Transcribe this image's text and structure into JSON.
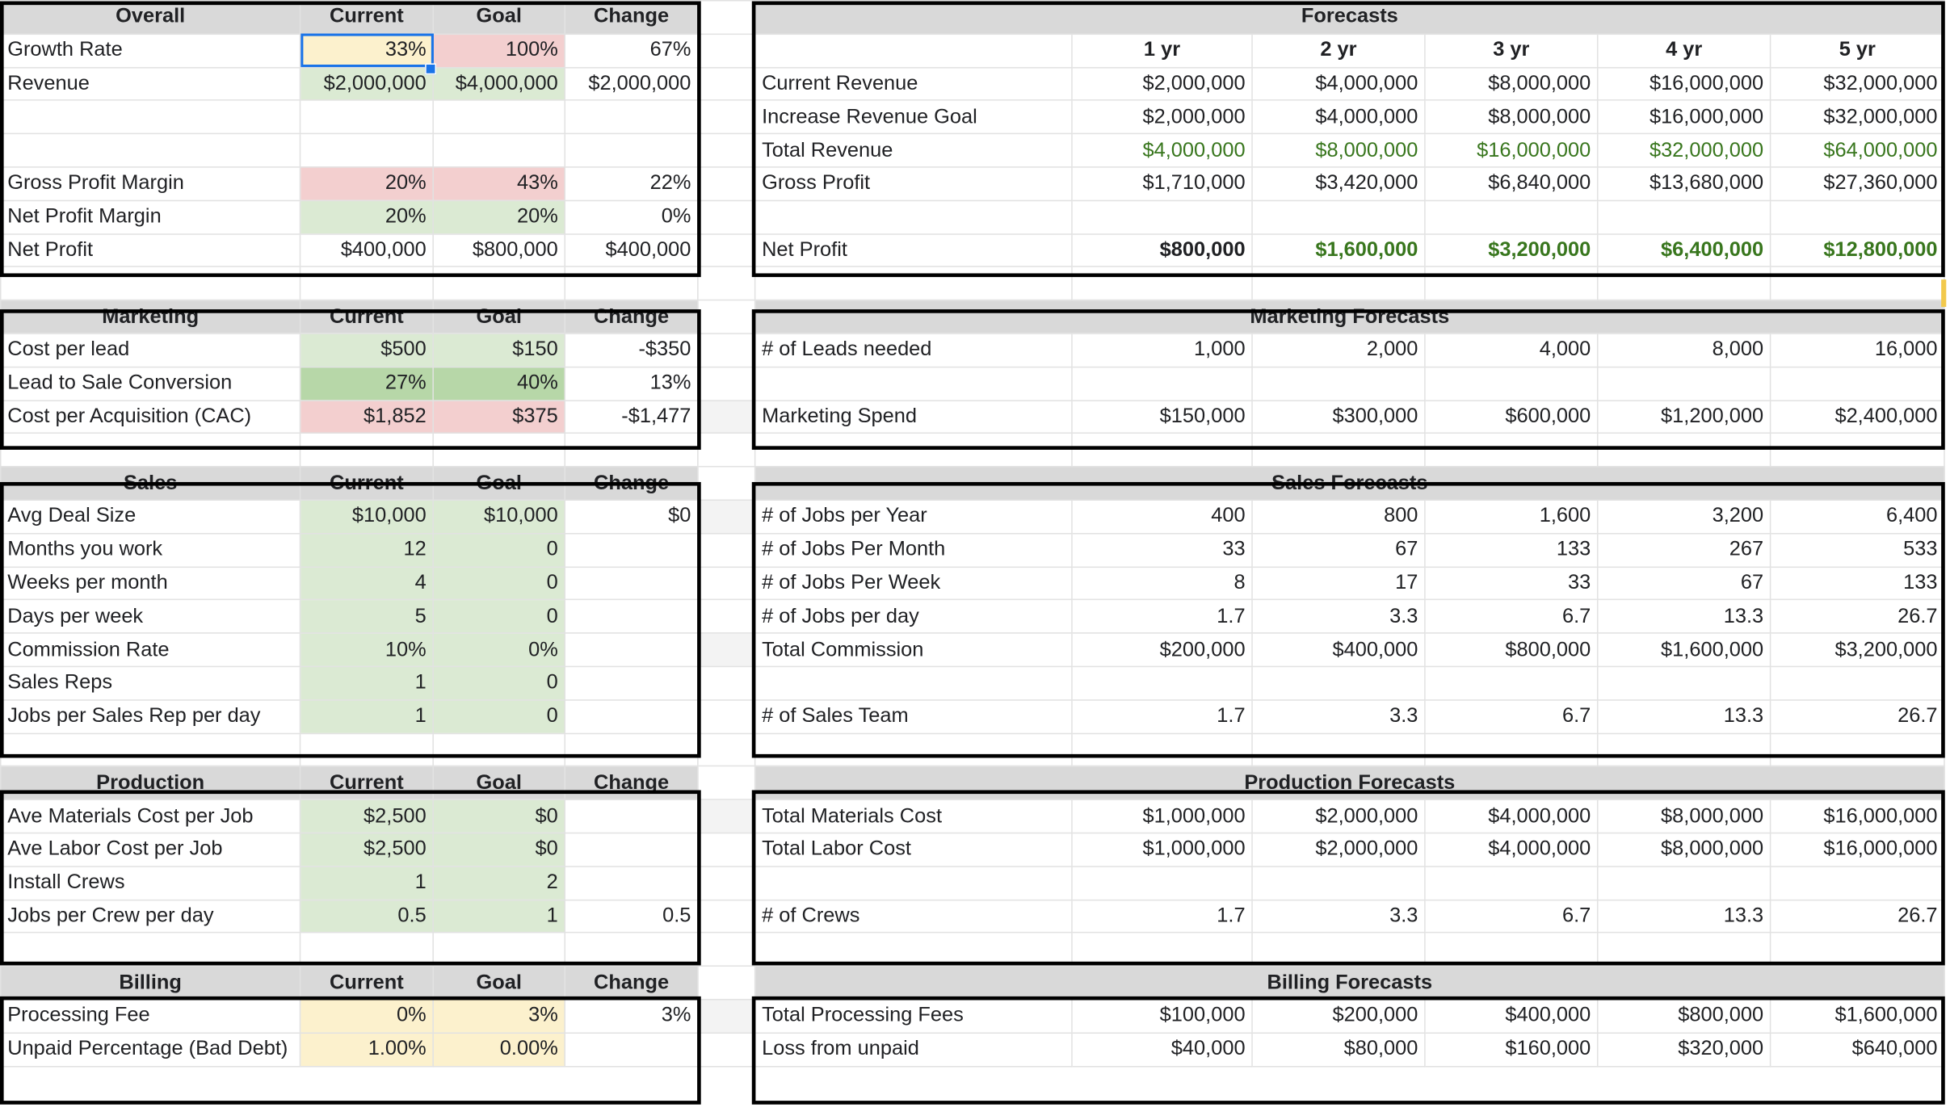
{
  "col_headers": [
    "Current",
    "Goal",
    "Change"
  ],
  "year_headers": [
    "1 yr",
    "2 yr",
    "3 yr",
    "4 yr",
    "5 yr"
  ],
  "overall": {
    "title": "Overall",
    "rows": [
      {
        "label": "Growth Rate",
        "current": "33%",
        "goal": "100%",
        "change": "67%"
      },
      {
        "label": "Revenue",
        "current": "$2,000,000",
        "goal": "$4,000,000",
        "change": "$2,000,000"
      },
      {
        "label": "",
        "current": "",
        "goal": "",
        "change": ""
      },
      {
        "label": "",
        "current": "",
        "goal": "",
        "change": ""
      },
      {
        "label": "Gross Profit Margin",
        "current": "20%",
        "goal": "43%",
        "change": "22%"
      },
      {
        "label": "Net Profit Margin",
        "current": "20%",
        "goal": "20%",
        "change": "0%"
      },
      {
        "label": "Net Profit",
        "current": "$400,000",
        "goal": "$800,000",
        "change": "$400,000"
      }
    ]
  },
  "forecasts": {
    "title": "Forecasts",
    "rows": [
      {
        "label": "Current Revenue",
        "values": [
          "$2,000,000",
          "$4,000,000",
          "$8,000,000",
          "$16,000,000",
          "$32,000,000"
        ]
      },
      {
        "label": "Increase Revenue Goal",
        "values": [
          "$2,000,000",
          "$4,000,000",
          "$8,000,000",
          "$16,000,000",
          "$32,000,000"
        ]
      },
      {
        "label": "Total Revenue",
        "values": [
          "$4,000,000",
          "$8,000,000",
          "$16,000,000",
          "$32,000,000",
          "$64,000,000"
        ]
      },
      {
        "label": "Gross Profit",
        "values": [
          "$1,710,000",
          "$3,420,000",
          "$6,840,000",
          "$13,680,000",
          "$27,360,000"
        ]
      },
      {
        "label": "",
        "values": [
          "",
          "",
          "",
          "",
          ""
        ]
      },
      {
        "label": "Net Profit",
        "values": [
          "$800,000",
          "$1,600,000",
          "$3,200,000",
          "$6,400,000",
          "$12,800,000"
        ]
      }
    ]
  },
  "marketing": {
    "title": "Marketing",
    "rows": [
      {
        "label": "Cost per lead",
        "current": "$500",
        "goal": "$150",
        "change": "-$350"
      },
      {
        "label": "Lead to Sale Conversion",
        "current": "27%",
        "goal": "40%",
        "change": "13%"
      },
      {
        "label": "Cost per Acquisition (CAC)",
        "current": "$1,852",
        "goal": "$375",
        "change": "-$1,477"
      }
    ]
  },
  "marketing_forecasts": {
    "title": "Marketing Forecasts",
    "rows": [
      {
        "label": "# of Leads needed",
        "values": [
          "1,000",
          "2,000",
          "4,000",
          "8,000",
          "16,000"
        ]
      },
      {
        "label": "",
        "values": [
          "",
          "",
          "",
          "",
          ""
        ]
      },
      {
        "label": "Marketing Spend",
        "values": [
          "$150,000",
          "$300,000",
          "$600,000",
          "$1,200,000",
          "$2,400,000"
        ]
      }
    ]
  },
  "sales": {
    "title": "Sales",
    "rows": [
      {
        "label": "Avg Deal Size",
        "current": "$10,000",
        "goal": "$10,000",
        "change": "$0"
      },
      {
        "label": "Months you work",
        "current": "12",
        "goal": "0",
        "change": ""
      },
      {
        "label": "Weeks per month",
        "current": "4",
        "goal": "0",
        "change": ""
      },
      {
        "label": "Days per week",
        "current": "5",
        "goal": "0",
        "change": ""
      },
      {
        "label": "Commission Rate",
        "current": "10%",
        "goal": "0%",
        "change": ""
      },
      {
        "label": "Sales Reps",
        "current": "1",
        "goal": "0",
        "change": ""
      },
      {
        "label": "Jobs per Sales Rep per day",
        "current": "1",
        "goal": "0",
        "change": ""
      }
    ]
  },
  "sales_forecasts": {
    "title": "Sales Forecasts",
    "rows": [
      {
        "label": "# of Jobs per Year",
        "values": [
          "400",
          "800",
          "1,600",
          "3,200",
          "6,400"
        ]
      },
      {
        "label": "# of Jobs Per Month",
        "values": [
          "33",
          "67",
          "133",
          "267",
          "533"
        ]
      },
      {
        "label": "# of Jobs Per Week",
        "values": [
          "8",
          "17",
          "33",
          "67",
          "133"
        ]
      },
      {
        "label": "# of Jobs per day",
        "values": [
          "1.7",
          "3.3",
          "6.7",
          "13.3",
          "26.7"
        ]
      },
      {
        "label": "Total Commission",
        "values": [
          "$200,000",
          "$400,000",
          "$800,000",
          "$1,600,000",
          "$3,200,000"
        ]
      },
      {
        "label": "",
        "values": [
          "",
          "",
          "",
          "",
          ""
        ]
      },
      {
        "label": "# of Sales Team",
        "values": [
          "1.7",
          "3.3",
          "6.7",
          "13.3",
          "26.7"
        ]
      }
    ]
  },
  "production": {
    "title": "Production",
    "rows": [
      {
        "label": "Ave Materials Cost per Job",
        "current": "$2,500",
        "goal": "$0",
        "change": ""
      },
      {
        "label": "Ave Labor Cost per Job",
        "current": "$2,500",
        "goal": "$0",
        "change": ""
      },
      {
        "label": "Install Crews",
        "current": "1",
        "goal": "2",
        "change": ""
      },
      {
        "label": "Jobs per Crew per day",
        "current": "0.5",
        "goal": "1",
        "change": "0.5"
      }
    ]
  },
  "production_forecasts": {
    "title": "Production Forecasts",
    "rows": [
      {
        "label": "Total Materials Cost",
        "values": [
          "$1,000,000",
          "$2,000,000",
          "$4,000,000",
          "$8,000,000",
          "$16,000,000"
        ]
      },
      {
        "label": "Total Labor Cost",
        "values": [
          "$1,000,000",
          "$2,000,000",
          "$4,000,000",
          "$8,000,000",
          "$16,000,000"
        ]
      },
      {
        "label": "",
        "values": [
          "",
          "",
          "",
          "",
          ""
        ]
      },
      {
        "label": "# of Crews",
        "values": [
          "1.7",
          "3.3",
          "6.7",
          "13.3",
          "26.7"
        ]
      }
    ]
  },
  "billing": {
    "title": "Billing",
    "rows": [
      {
        "label": "Processing Fee",
        "current": "0%",
        "goal": "3%",
        "change": "3%"
      },
      {
        "label": "Unpaid Percentage (Bad Debt)",
        "current": "1.00%",
        "goal": "0.00%",
        "change": ""
      }
    ]
  },
  "billing_forecasts": {
    "title": "Billing Forecasts",
    "rows": [
      {
        "label": "Total Processing Fees",
        "values": [
          "$100,000",
          "$200,000",
          "$400,000",
          "$800,000",
          "$1,600,000"
        ]
      },
      {
        "label": "Loss from unpaid",
        "values": [
          "$40,000",
          "$80,000",
          "$160,000",
          "$320,000",
          "$640,000"
        ]
      }
    ]
  },
  "colors": {
    "header_gray": "#d9d9d9",
    "light_green": "#dbead3",
    "medium_green": "#b7d7a8",
    "light_red": "#f3cfcf",
    "light_yellow": "#fcf1cd",
    "positive_text": "#38761d",
    "selection_blue": "#1a73e8"
  }
}
